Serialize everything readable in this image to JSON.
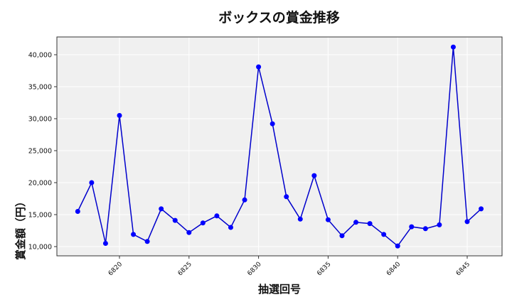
{
  "chart_data": {
    "type": "line",
    "title": "ボックスの賞金推移",
    "xlabel": "抽選回号",
    "ylabel": "賞金額（円）",
    "x": [
      6817,
      6818,
      6819,
      6820,
      6821,
      6822,
      6823,
      6824,
      6825,
      6826,
      6827,
      6828,
      6829,
      6830,
      6831,
      6832,
      6833,
      6834,
      6835,
      6836,
      6837,
      6838,
      6839,
      6840,
      6841,
      6842,
      6843,
      6844,
      6845,
      6846
    ],
    "series": [
      {
        "name": "ボックス",
        "color": "#0000ff",
        "line_color": "#0000cc",
        "values": [
          15500,
          20000,
          10500,
          30500,
          11900,
          10800,
          15900,
          14100,
          12200,
          13700,
          14800,
          13000,
          17300,
          38100,
          29200,
          17800,
          14300,
          21100,
          14200,
          11700,
          13800,
          13600,
          11900,
          10100,
          13100,
          12800,
          13400,
          41200,
          13900,
          15900
        ]
      }
    ],
    "xticks": [
      6820,
      6825,
      6830,
      6835,
      6840,
      6845
    ],
    "xtick_labels": [
      "6820",
      "6825",
      "6830",
      "6835",
      "6840",
      "6845"
    ],
    "yticks": [
      10000,
      15000,
      20000,
      25000,
      30000,
      35000,
      40000
    ],
    "ytick_labels": [
      "10,000",
      "15,000",
      "20,000",
      "25,000",
      "30,000",
      "35,000",
      "40,000"
    ],
    "xlim": [
      6815.5,
      6847.5
    ],
    "ylim": [
      8500,
      42800
    ],
    "grid": true,
    "background": "#f0f0f0",
    "legend": null
  }
}
